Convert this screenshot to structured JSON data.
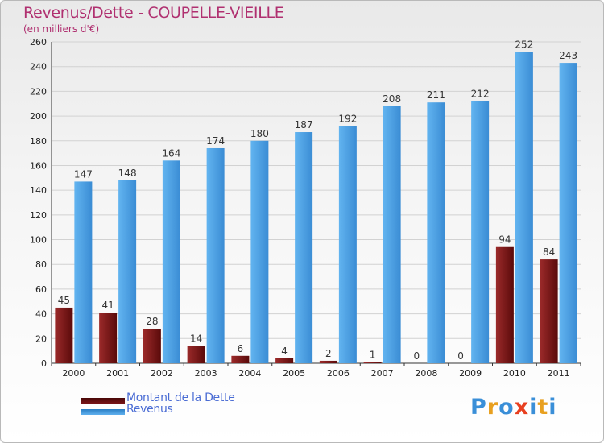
{
  "title": "Revenus/Dette - COUPELLE-VIEILLE",
  "subtitle": "(en milliers d'€)",
  "chart_data": {
    "type": "bar",
    "title": "Revenus/Dette - COUPELLE-VIEILLE",
    "ylabel": "(en milliers d'€)",
    "xlabel": "",
    "categories": [
      "2000",
      "2001",
      "2002",
      "2003",
      "2004",
      "2005",
      "2006",
      "2007",
      "2008",
      "2009",
      "2010",
      "2011"
    ],
    "series": [
      {
        "name": "Montant de la Dette",
        "values": [
          45,
          41,
          28,
          14,
          6,
          4,
          2,
          1,
          0,
          0,
          94,
          84
        ],
        "color": "#7a1518"
      },
      {
        "name": "Revenus",
        "values": [
          147,
          148,
          164,
          174,
          180,
          187,
          192,
          208,
          211,
          212,
          252,
          243
        ],
        "color": "#4aa0e4"
      }
    ],
    "ylim": [
      0,
      260
    ],
    "yticks": [
      0,
      20,
      40,
      60,
      80,
      100,
      120,
      140,
      160,
      180,
      200,
      220,
      240,
      260
    ],
    "grid": true,
    "legend": "bottom-left"
  },
  "legend": {
    "items": [
      {
        "label": "Montant de la Dette",
        "color": "#6b0c0c"
      },
      {
        "label": "Revenus",
        "color": "#4aa0e4"
      }
    ]
  },
  "logo": {
    "letters": [
      "P",
      "r",
      "o",
      "x",
      "i",
      "t",
      "i"
    ],
    "colors": [
      "#3a8fd8",
      "#e8a020",
      "#3a8fd8",
      "#e84020",
      "#3a8fd8",
      "#e8a020",
      "#3a8fd8"
    ]
  }
}
